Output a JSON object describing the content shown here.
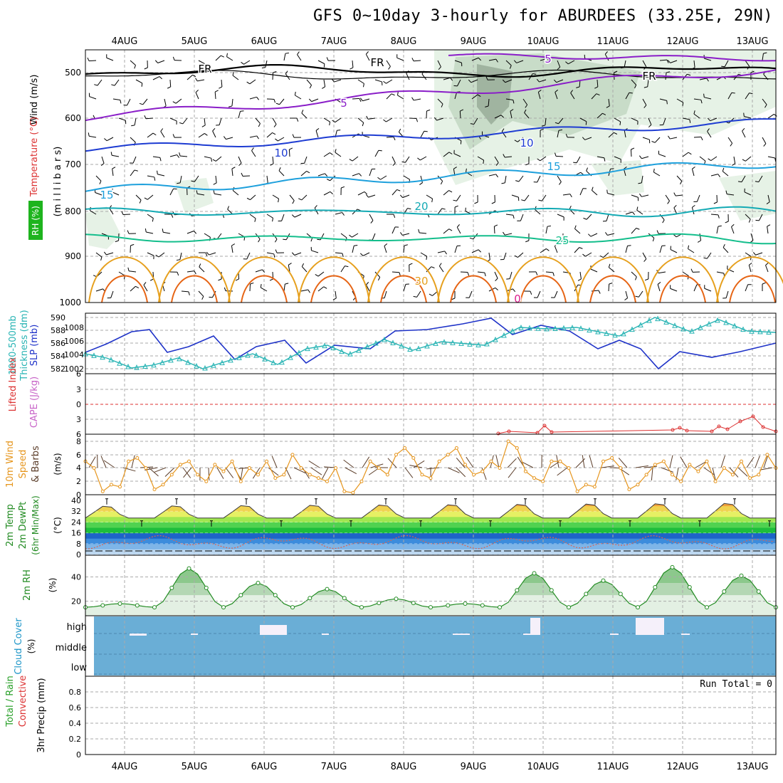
{
  "title": "GFS 0~10day 3-hourly for ABURDEES (33.25E, 29N)",
  "dates": [
    "4AUG",
    "5AUG",
    "6AUG",
    "7AUG",
    "8AUG",
    "9AUG",
    "10AUG",
    "11AUG",
    "12AUG",
    "13AUG"
  ],
  "colors": {
    "freezing": "#000000",
    "t5": "#8a1ec8",
    "t10": "#1e3cd2",
    "t15": "#1ea0dc",
    "t20": "#14aab4",
    "t25": "#14be8c",
    "t30": "#e6a01e",
    "t35": "#e66414",
    "rh_light": "#e6f2e6",
    "rh_mid": "#c8dcc8",
    "rh_dark": "#a0b4a0",
    "slp": "#1e32c8",
    "thickness": "#28b4b4",
    "lifted": "#dc3232",
    "cape": "#c864c8",
    "wind10m": "#e6961e",
    "barbs": "#5a3c28",
    "rh2m": "#228b22",
    "cloud": "#6aaed6"
  },
  "upper": {
    "ylabel_wind": "Wind (m/s)",
    "ylabel_temp": "Temperature (°C)",
    "ylabel_rh": "RH (%)",
    "ylabel_mb": "(m i l l i b a r s)",
    "ticks": [
      "500",
      "600",
      "700",
      "800",
      "900",
      "1000"
    ],
    "labels": {
      "fr": "FR",
      "t5": "5",
      "t10": "10",
      "t15": "15",
      "t20": "20",
      "t25": "25",
      "t30": "30",
      "t0": "0"
    }
  },
  "slp_panel": {
    "ylabel_thick": "1000-500mb",
    "ylabel_thick2": "Thickness (dm)",
    "ylabel_slp": "SLP (mb)",
    "thick_ticks": [
      "590",
      "588",
      "586",
      "584",
      "582"
    ],
    "slp_ticks": [
      "1008",
      "1006",
      "1004",
      "1002"
    ]
  },
  "li_panel": {
    "ylabel_li": "Lifted Index",
    "ylabel_cape": "CAPE (J/kg)",
    "ticks": [
      "6",
      "3",
      "0",
      "3",
      "6"
    ]
  },
  "wind_panel": {
    "ylabel1": "10m Wind",
    "ylabel2": "Speed",
    "ylabel3": "& Barbs",
    "ylabel_unit": "(m/s)",
    "ticks": [
      "8",
      "6",
      "4",
      "2",
      "0"
    ]
  },
  "temp_panel": {
    "ylabel1": "2m Temp",
    "ylabel2": "2m DewPt",
    "ylabel3": "(6hr Min/Max)",
    "ylabel_unit": "(°C)",
    "ticks": [
      "40",
      "32",
      "24",
      "16",
      "8",
      "0"
    ]
  },
  "rh_panel": {
    "ylabel": "2m RH",
    "ylabel_unit": "(%)",
    "ticks": [
      "40",
      "20"
    ]
  },
  "cloud_panel": {
    "ylabel": "Cloud Cover",
    "ylabel_unit": "(%)",
    "levels": [
      "high",
      "middle",
      "low"
    ]
  },
  "precip_panel": {
    "ylabel1": "Total / Rain",
    "ylabel2": "Convective",
    "ylabel3": "3hr Precip (mm)",
    "run_total": "Run Total = 0",
    "ticks": [
      "0.8",
      "0.6",
      "0.4",
      "0.2",
      "0"
    ]
  },
  "chart_data": {
    "type": "line",
    "x": [
      "4AUG",
      "5AUG",
      "6AUG",
      "7AUG",
      "8AUG",
      "9AUG",
      "10AUG",
      "11AUG",
      "12AUG",
      "13AUG"
    ],
    "series": [
      {
        "name": "SLP (mb)",
        "values": [
          1005.2,
          1004.6,
          1003.8,
          1005.0,
          1004.2,
          1008.2,
          1006.5,
          1005.6,
          1002.4,
          1004.8
        ]
      },
      {
        "name": "1000-500mb Thickness (dm)",
        "values": [
          583.2,
          583.0,
          583.6,
          584.6,
          586.0,
          586.2,
          587.6,
          587.4,
          588.2,
          586.8
        ]
      },
      {
        "name": "10m Wind Speed (m/s)",
        "values": [
          1.5,
          5.0,
          3.5,
          4.5,
          4.0,
          1.0,
          5.0,
          5.5,
          7.5,
          2.0
        ]
      },
      {
        "name": "2m Temp max (°C)",
        "values": [
          36,
          36,
          37,
          37,
          37,
          38,
          38,
          38,
          39,
          39
        ]
      },
      {
        "name": "2m Temp min (°C)",
        "values": [
          27,
          28,
          27,
          27,
          27,
          28,
          27,
          28,
          27,
          28
        ]
      },
      {
        "name": "2m DewPt (°C)",
        "values": [
          8,
          10,
          10,
          6,
          6,
          8,
          10,
          4,
          14,
          12
        ]
      },
      {
        "name": "2m RH (%)",
        "values": [
          18,
          47,
          35,
          30,
          22,
          18,
          43,
          37,
          48,
          41
        ]
      }
    ],
    "precip_run_total": 0,
    "slp_ylim": [
      1001,
      1010
    ],
    "thickness_ylim": [
      581,
      590
    ],
    "wind_ylim": [
      0,
      8.5
    ],
    "temp_ylim": [
      0,
      42
    ],
    "rh_ylim": [
      8,
      55
    ],
    "precip_ylim": [
      0,
      1
    ]
  }
}
